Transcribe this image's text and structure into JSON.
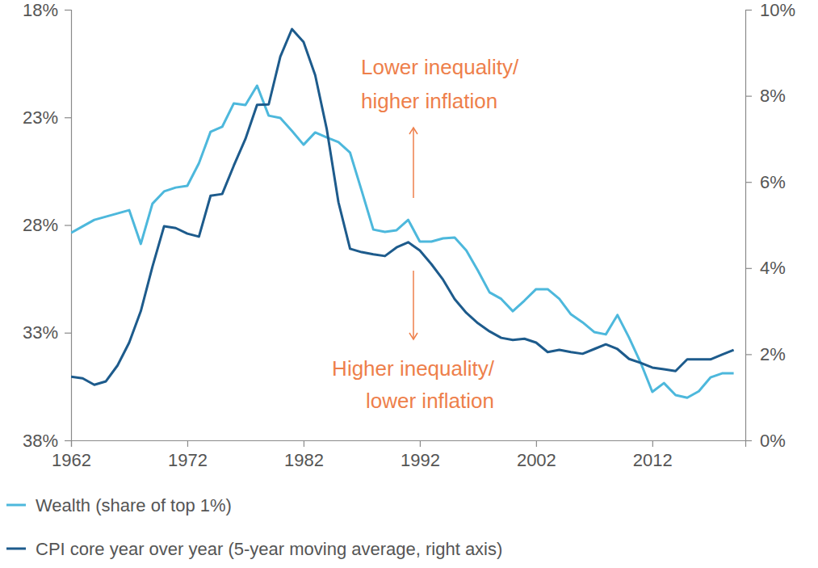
{
  "chart_data": {
    "type": "line",
    "x": [
      1962,
      1963,
      1964,
      1965,
      1966,
      1967,
      1968,
      1969,
      1970,
      1971,
      1972,
      1973,
      1974,
      1975,
      1976,
      1977,
      1978,
      1979,
      1980,
      1981,
      1982,
      1983,
      1984,
      1985,
      1986,
      1987,
      1988,
      1989,
      1990,
      1991,
      1992,
      1993,
      1994,
      1995,
      1996,
      1997,
      1998,
      1999,
      2000,
      2001,
      2002,
      2003,
      2004,
      2005,
      2006,
      2007,
      2008,
      2009,
      2010,
      2011,
      2012,
      2013,
      2014,
      2015,
      2016,
      2017,
      2018,
      2019
    ],
    "xlim": [
      1962,
      2020
    ],
    "xticks": [
      1962,
      1972,
      1982,
      1992,
      2002,
      2012
    ],
    "ylim": [
      38,
      18
    ],
    "yticks": [
      {
        "value": 18,
        "label": "18%"
      },
      {
        "value": 23,
        "label": "23%"
      },
      {
        "value": 28,
        "label": "28%"
      },
      {
        "value": 33,
        "label": "33%"
      },
      {
        "value": 38,
        "label": "38%"
      }
    ],
    "y2lim": [
      0,
      10
    ],
    "y2ticks": [
      {
        "value": 0,
        "label": "0%"
      },
      {
        "value": 2,
        "label": "2%"
      },
      {
        "value": 4,
        "label": "4%"
      },
      {
        "value": 6,
        "label": "6%"
      },
      {
        "value": 8,
        "label": "8%"
      },
      {
        "value": 10,
        "label": "10%"
      }
    ],
    "grid": false,
    "legend": "bottom",
    "series": [
      {
        "name": "Wealth (share of top 1%)",
        "color": "#4db8dc",
        "values": [
          28.36,
          28.06,
          27.76,
          27.61,
          27.46,
          27.31,
          28.88,
          27.01,
          26.44,
          26.26,
          26.18,
          25.13,
          23.67,
          23.44,
          22.35,
          22.43,
          21.53,
          22.92,
          23.03,
          23.63,
          24.27,
          23.7,
          23.93,
          24.15,
          24.64,
          26.41,
          28.21,
          28.32,
          28.24,
          27.76,
          28.77,
          28.77,
          28.62,
          28.58,
          29.18,
          30.12,
          31.13,
          31.43,
          32.0,
          31.51,
          30.98,
          30.98,
          31.43,
          32.15,
          32.52,
          32.97,
          33.08,
          32.18,
          33.23,
          34.4,
          35.75,
          35.34,
          35.9,
          36.02,
          35.72,
          35.08,
          34.89,
          34.89
        ]
      },
      {
        "name": "CPI core year over year (5-year moving average, right axis)",
        "color": "#1d5b8c",
        "axis": "y2",
        "values": [
          1.48,
          1.44,
          1.29,
          1.37,
          1.74,
          2.27,
          3.0,
          4.03,
          4.97,
          4.93,
          4.8,
          4.73,
          5.68,
          5.72,
          6.38,
          7.0,
          7.79,
          7.8,
          8.91,
          9.55,
          9.25,
          8.48,
          7.22,
          5.53,
          4.45,
          4.37,
          4.32,
          4.28,
          4.48,
          4.6,
          4.41,
          4.09,
          3.73,
          3.28,
          2.96,
          2.72,
          2.53,
          2.38,
          2.33,
          2.36,
          2.27,
          2.05,
          2.1,
          2.05,
          2.01,
          2.12,
          2.23,
          2.12,
          1.89,
          1.8,
          1.69,
          1.65,
          1.61,
          1.88,
          1.88,
          1.88,
          1.99,
          2.1
        ]
      }
    ],
    "annotations": [
      {
        "text": [
          "Lower inequality/",
          "higher inflation"
        ],
        "color": "#ee7f4b"
      },
      {
        "text": [
          "Higher inequality/",
          "lower inflation"
        ],
        "color": "#ee7f4b"
      }
    ]
  }
}
